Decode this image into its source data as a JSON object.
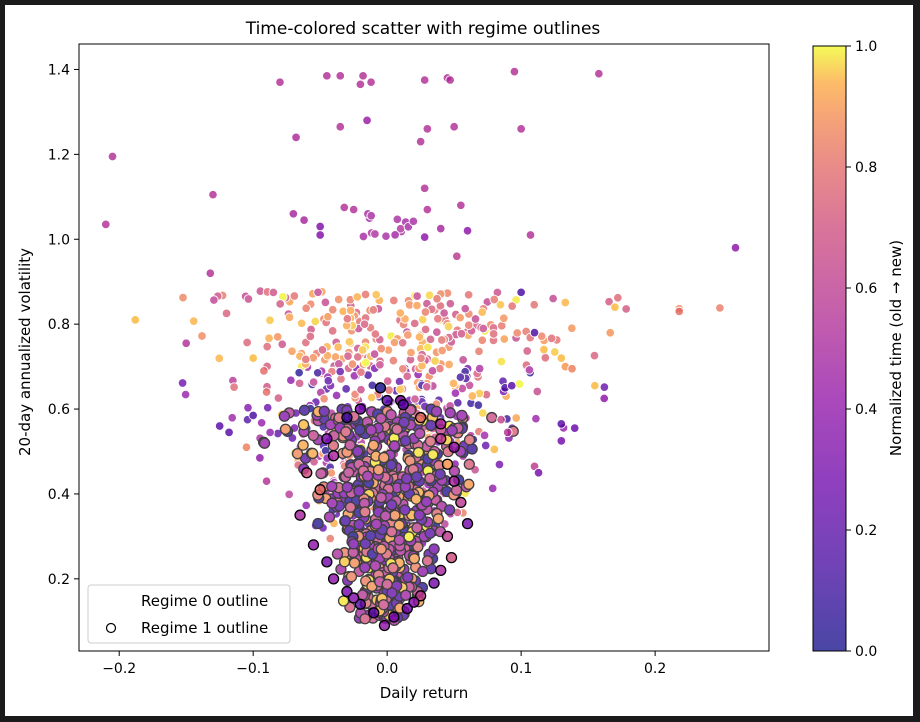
{
  "chart_data": {
    "type": "scatter",
    "title": "Time-colored scatter with regime outlines",
    "xlabel": "Daily return",
    "ylabel": "20-day annualized volatility",
    "xlim": [
      -0.23,
      0.285
    ],
    "ylim": [
      0.03,
      1.46
    ],
    "xticks": [
      -0.2,
      -0.1,
      0.0,
      0.1,
      0.2
    ],
    "xtick_labels": [
      "−0.2",
      "−0.1",
      "0.0",
      "0.1",
      "0.2"
    ],
    "yticks": [
      0.2,
      0.4,
      0.6,
      0.8,
      1.0,
      1.2,
      1.4
    ],
    "ytick_labels": [
      "0.2",
      "0.4",
      "0.6",
      "0.8",
      "1.0",
      "1.2",
      "1.4"
    ],
    "grid": false,
    "legend": {
      "placement": "lower-left",
      "entries": [
        "Regime 0 outline",
        "Regime 1 outline"
      ]
    },
    "colorbar": {
      "label": "Normalized time (old → new)",
      "colormap": "plasma",
      "range": [
        0.0,
        1.0
      ],
      "ticks": [
        0.0,
        0.2,
        0.4,
        0.6,
        0.8,
        1.0
      ],
      "tick_labels": [
        "0.0",
        "0.2",
        "0.4",
        "0.6",
        "0.8",
        "1.0"
      ]
    },
    "series": [
      {
        "name": "Regime 0 outline",
        "marker_edge": "#ffffff",
        "points": [
          [
            -0.205,
            1.195,
            0.55
          ],
          [
            -0.21,
            1.035,
            0.55
          ],
          [
            -0.13,
            1.105,
            0.55
          ],
          [
            -0.132,
            0.92,
            0.55
          ],
          [
            -0.15,
            0.755,
            0.55
          ],
          [
            -0.188,
            0.81,
            0.95
          ],
          [
            -0.08,
            1.37,
            0.55
          ],
          [
            -0.068,
            1.24,
            0.52
          ],
          [
            -0.062,
            1.045,
            0.5
          ],
          [
            -0.07,
            1.06,
            0.5
          ],
          [
            -0.045,
            1.385,
            0.55
          ],
          [
            -0.035,
            1.385,
            0.55
          ],
          [
            -0.018,
            1.385,
            0.55
          ],
          [
            -0.02,
            1.365,
            0.55
          ],
          [
            -0.012,
            1.37,
            0.55
          ],
          [
            -0.015,
            1.28,
            0.45
          ],
          [
            -0.035,
            1.265,
            0.55
          ],
          [
            -0.032,
            1.075,
            0.55
          ],
          [
            -0.025,
            1.07,
            0.55
          ],
          [
            -0.05,
            1.03,
            0.35
          ],
          [
            -0.05,
            1.01,
            0.35
          ],
          [
            0.028,
            1.375,
            0.55
          ],
          [
            0.045,
            1.38,
            0.55
          ],
          [
            0.047,
            1.375,
            0.55
          ],
          [
            0.095,
            1.395,
            0.55
          ],
          [
            0.158,
            1.39,
            0.55
          ],
          [
            0.03,
            1.26,
            0.55
          ],
          [
            0.05,
            1.265,
            0.55
          ],
          [
            0.1,
            1.26,
            0.55
          ],
          [
            0.025,
            1.23,
            0.55
          ],
          [
            0.028,
            1.12,
            0.55
          ],
          [
            0.055,
            1.08,
            0.55
          ],
          [
            0.03,
            1.07,
            0.55
          ],
          [
            0.107,
            1.01,
            0.55
          ],
          [
            0.04,
            1.025,
            0.5
          ],
          [
            0.06,
            1.02,
            0.4
          ],
          [
            0.028,
            1.005,
            0.4
          ],
          [
            0.052,
            0.96,
            0.6
          ],
          [
            0.26,
            0.98,
            0.4
          ],
          [
            0.1,
            0.875,
            0.15
          ],
          [
            0.11,
            0.78,
            0.15
          ],
          [
            0.117,
            0.74,
            0.95
          ],
          [
            0.13,
            0.72,
            0.95
          ],
          [
            0.133,
            0.7,
            0.9
          ],
          [
            0.138,
            0.695,
            0.85
          ],
          [
            0.155,
            0.655,
            0.95
          ],
          [
            0.162,
            0.625,
            0.4
          ],
          [
            0.17,
            0.84,
            0.95
          ],
          [
            0.218,
            0.83,
            0.8
          ],
          [
            0.13,
            0.565,
            0.2
          ],
          [
            0.14,
            0.555,
            0.25
          ],
          [
            0.13,
            0.525,
            0.3
          ],
          [
            0.11,
            0.465,
            0.6
          ],
          [
            0.113,
            0.45,
            0.3
          ],
          [
            0.085,
            0.575,
            0.65
          ],
          [
            0.09,
            0.545,
            0.55
          ],
          [
            0.08,
            0.505,
            0.95
          ],
          [
            0.088,
            0.65,
            0.15
          ],
          [
            0.093,
            0.655,
            0.2
          ],
          [
            -0.125,
            0.56,
            0.2
          ],
          [
            -0.118,
            0.545,
            0.2
          ],
          [
            -0.1,
            0.585,
            0.15
          ],
          [
            -0.105,
            0.51,
            0.85
          ],
          [
            -0.095,
            0.485,
            0.4
          ],
          [
            -0.09,
            0.64,
            0.8
          ],
          [
            -0.1,
            0.72,
            0.95
          ],
          [
            -0.092,
            0.69,
            0.8
          ],
          [
            -0.09,
            0.43,
            0.55
          ]
        ]
      },
      {
        "name": "Regime 1 outline",
        "marker_edge": "#000000",
        "points": [
          [
            -0.005,
            0.65,
            0.0
          ],
          [
            0.0,
            0.62,
            0.2
          ],
          [
            0.01,
            0.62,
            0.3
          ],
          [
            0.012,
            0.61,
            0.2
          ],
          [
            -0.02,
            0.6,
            0.3
          ],
          [
            0.025,
            0.58,
            0.8
          ],
          [
            -0.03,
            0.58,
            0.1
          ],
          [
            0.04,
            0.565,
            0.5
          ],
          [
            -0.045,
            0.53,
            0.3
          ],
          [
            0.04,
            0.53,
            0.6
          ],
          [
            0.05,
            0.51,
            0.4
          ],
          [
            -0.04,
            0.49,
            0.5
          ],
          [
            0.045,
            0.47,
            0.9
          ],
          [
            -0.06,
            0.45,
            0.7
          ],
          [
            0.05,
            0.43,
            0.5
          ],
          [
            -0.05,
            0.41,
            0.8
          ],
          [
            0.055,
            0.38,
            0.6
          ],
          [
            -0.065,
            0.35,
            0.5
          ],
          [
            0.06,
            0.33,
            0.3
          ],
          [
            0.045,
            0.3,
            0.6
          ],
          [
            -0.055,
            0.28,
            0.4
          ],
          [
            -0.045,
            0.24,
            0.3
          ],
          [
            0.048,
            0.25,
            0.7
          ],
          [
            0.04,
            0.22,
            0.5
          ],
          [
            -0.04,
            0.2,
            0.4
          ],
          [
            0.035,
            0.19,
            0.3
          ],
          [
            -0.03,
            0.17,
            0.3
          ],
          [
            0.025,
            0.16,
            0.6
          ],
          [
            -0.02,
            0.14,
            0.2
          ],
          [
            0.015,
            0.13,
            0.3
          ],
          [
            -0.01,
            0.12,
            0.2
          ],
          [
            0.005,
            0.11,
            0.3
          ],
          [
            -0.002,
            0.09,
            0.4
          ],
          [
            0.02,
            0.145,
            0.35
          ],
          [
            -0.025,
            0.155,
            0.35
          ]
        ]
      }
    ]
  }
}
